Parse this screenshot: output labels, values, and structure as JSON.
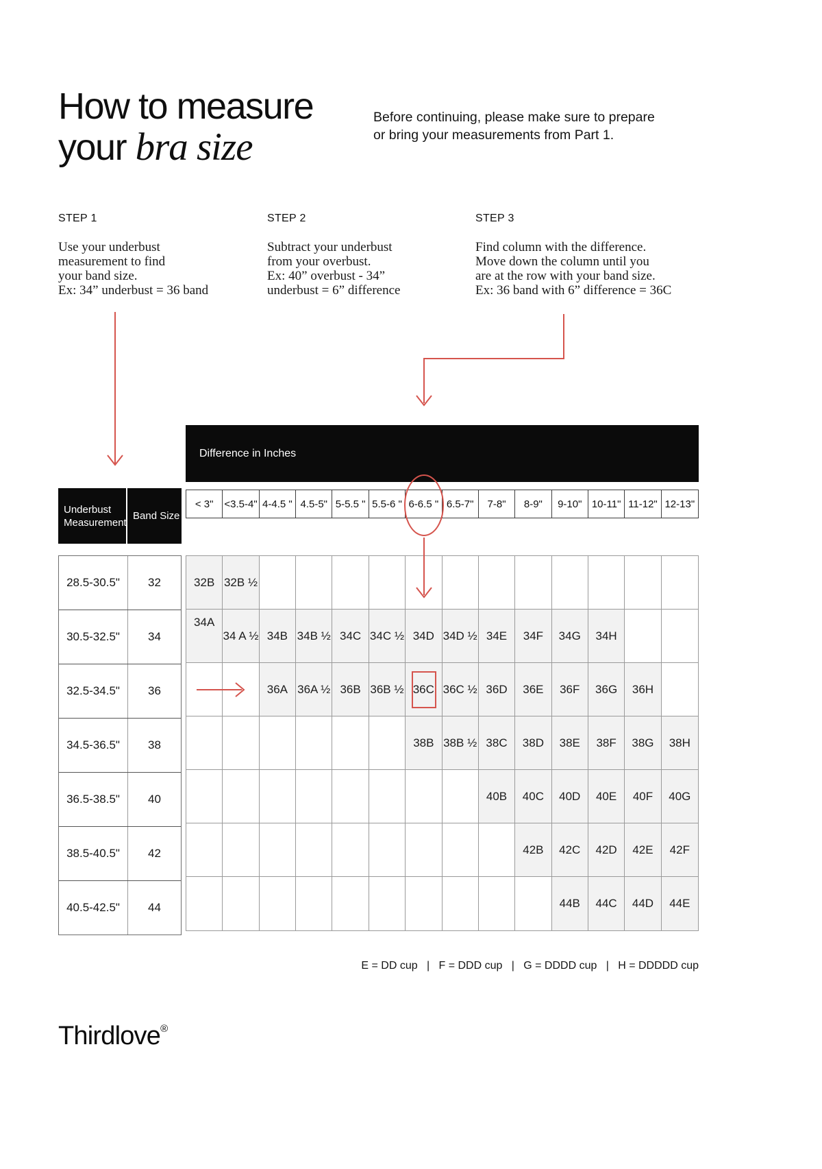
{
  "page": {
    "title_line1": "How to measure",
    "title_line2_prefix": "your ",
    "title_line2_italic": "bra size",
    "intro": "Before continuing, please make sure to prepare\nor bring your measurements from Part 1.",
    "legend": "E = DD cup   |   F = DDD cup   |   G = DDDD cup   |   H = DDDDD cup",
    "brand": "Thirdlove",
    "brand_registered_mark": "®"
  },
  "colors": {
    "accent_red": "#d5544d",
    "header_black": "#0b0b0b",
    "cell_shade": "#f2f2f2",
    "grid_border": "#9a9a9a"
  },
  "steps": [
    {
      "label": "STEP 1",
      "text": "Use your underbust\nmeasurement to find\nyour band size.\nEx: 34” underbust = 36 band"
    },
    {
      "label": "STEP 2",
      "text": "Subtract your underbust\nfrom your overbust.\nEx: 40” overbust - 34”\nunderbust = 6” difference"
    },
    {
      "label": "STEP 3",
      "text": "Find column with the difference.\nMove down the column until you\nare at the row with your band size.\nEx: 36 band with 6” difference = 36C"
    }
  ],
  "table": {
    "band_header": "Difference in Inches",
    "corner_header_underbust": "Underbust\nMeasurement",
    "corner_header_band": "Band Size",
    "columns": [
      "< 3\"",
      "<3.5-4\"",
      "4-4.5 \"",
      "4.5-5\"",
      "5-5.5 \"",
      "5.5-6 \"",
      "6-6.5 \"",
      "6.5-7\"",
      "7-8\"",
      "8-9\"",
      "9-10\"",
      "10-11\"",
      "11-12\"",
      "12-13\""
    ],
    "rows": [
      {
        "underbust": "28.5-30.5\"",
        "band": "32",
        "cells": [
          "32B",
          "32B ½",
          "",
          "",
          "",
          "",
          "",
          "",
          "",
          "",
          "",
          "",
          "",
          ""
        ]
      },
      {
        "underbust": "30.5-32.5\"",
        "band": "34",
        "cells": [
          "34A",
          "34 A ½",
          "34B",
          "34B ½",
          "34C",
          "34C ½",
          "34D",
          "34D ½",
          "34E",
          "34F",
          "34G",
          "34H",
          "",
          ""
        ]
      },
      {
        "underbust": "32.5-34.5\"",
        "band": "36",
        "cells": [
          "",
          "",
          "36A",
          "36A ½",
          "36B",
          "36B ½",
          "36C",
          "36C ½",
          "36D",
          "36E",
          "36F",
          "36G",
          "36H",
          ""
        ]
      },
      {
        "underbust": "34.5-36.5\"",
        "band": "38",
        "cells": [
          "",
          "",
          "",
          "",
          "",
          "",
          "38B",
          "38B ½",
          "38C",
          "38D",
          "38E",
          "38F",
          "38G",
          "38H"
        ]
      },
      {
        "underbust": "36.5-38.5\"",
        "band": "40",
        "cells": [
          "",
          "",
          "",
          "",
          "",
          "",
          "",
          "",
          "40B",
          "40C",
          "40D",
          "40E",
          "40F",
          "40G"
        ]
      },
      {
        "underbust": "38.5-40.5\"",
        "band": "42",
        "cells": [
          "",
          "",
          "",
          "",
          "",
          "",
          "",
          "",
          "",
          "42B",
          "42C",
          "42D",
          "42E",
          "42F"
        ]
      },
      {
        "underbust": "40.5-42.5\"",
        "band": "44",
        "cells": [
          "",
          "",
          "",
          "",
          "",
          "",
          "",
          "",
          "",
          "",
          "44B",
          "44C",
          "44D",
          "44E"
        ]
      }
    ],
    "annotations": {
      "circled_column_index": 6,
      "boxed_cell": {
        "row": 2,
        "col": 6
      },
      "top_aligned_cell": {
        "row": 1,
        "col": 0
      },
      "row_arrow": {
        "row": 2,
        "cols": [
          0,
          1
        ]
      }
    }
  }
}
